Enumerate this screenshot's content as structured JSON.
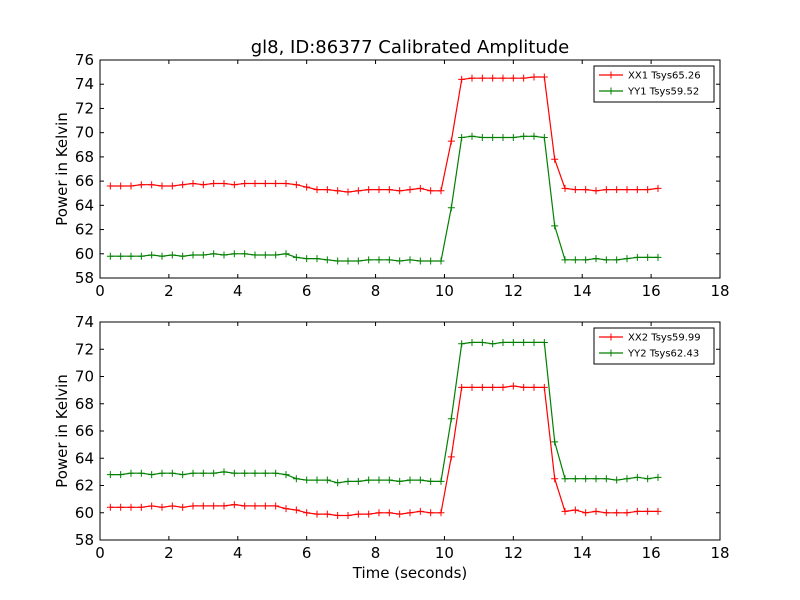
{
  "figure": {
    "title": "gl8, ID:86377 Calibrated Amplitude",
    "xlabel": "Time (seconds)"
  },
  "chart_data": [
    {
      "type": "line",
      "title": "gl8, ID:86377 Calibrated Amplitude",
      "xlabel": "",
      "ylabel": "Power in Kelvin",
      "xlim": [
        0,
        18
      ],
      "ylim": [
        58,
        76
      ],
      "xticks": [
        0,
        2,
        4,
        6,
        8,
        10,
        12,
        14,
        16,
        18
      ],
      "yticks": [
        58,
        60,
        62,
        64,
        66,
        68,
        70,
        72,
        74,
        76
      ],
      "grid": false,
      "legend_position": "top-right",
      "x": [
        0.3,
        0.6,
        0.9,
        1.2,
        1.5,
        1.8,
        2.1,
        2.4,
        2.7,
        3.0,
        3.3,
        3.6,
        3.9,
        4.2,
        4.5,
        4.8,
        5.1,
        5.4,
        5.7,
        6.0,
        6.3,
        6.6,
        6.9,
        7.2,
        7.5,
        7.8,
        8.1,
        8.4,
        8.7,
        9.0,
        9.3,
        9.6,
        9.9,
        10.2,
        10.5,
        10.8,
        11.1,
        11.4,
        11.7,
        12.0,
        12.3,
        12.6,
        12.9,
        13.2,
        13.5,
        13.8,
        14.1,
        14.4,
        14.7,
        15.0,
        15.3,
        15.6,
        15.9,
        16.2
      ],
      "series": [
        {
          "name": "XX1 Tsys65.26",
          "color": "#ff0000",
          "values": [
            65.6,
            65.6,
            65.6,
            65.7,
            65.7,
            65.6,
            65.6,
            65.7,
            65.8,
            65.7,
            65.8,
            65.8,
            65.7,
            65.8,
            65.8,
            65.8,
            65.8,
            65.8,
            65.7,
            65.5,
            65.3,
            65.3,
            65.2,
            65.1,
            65.2,
            65.3,
            65.3,
            65.3,
            65.2,
            65.3,
            65.4,
            65.2,
            65.2,
            69.3,
            74.4,
            74.5,
            74.5,
            74.5,
            74.5,
            74.5,
            74.5,
            74.6,
            74.6,
            67.8,
            65.4,
            65.3,
            65.3,
            65.2,
            65.3,
            65.3,
            65.3,
            65.3,
            65.3,
            65.4
          ]
        },
        {
          "name": "YY1 Tsys59.52",
          "color": "#008000",
          "values": [
            59.8,
            59.8,
            59.8,
            59.8,
            59.9,
            59.8,
            59.9,
            59.8,
            59.9,
            59.9,
            60.0,
            59.9,
            60.0,
            60.0,
            59.9,
            59.9,
            59.9,
            60.0,
            59.7,
            59.6,
            59.6,
            59.5,
            59.4,
            59.4,
            59.4,
            59.5,
            59.5,
            59.5,
            59.4,
            59.5,
            59.4,
            59.4,
            59.4,
            63.8,
            69.6,
            69.7,
            69.6,
            69.6,
            69.6,
            69.6,
            69.7,
            69.7,
            69.6,
            62.3,
            59.5,
            59.5,
            59.5,
            59.6,
            59.5,
            59.5,
            59.6,
            59.7,
            59.7,
            59.7
          ]
        }
      ]
    },
    {
      "type": "line",
      "title": "",
      "xlabel": "Time (seconds)",
      "ylabel": "Power in Kelvin",
      "xlim": [
        0,
        18
      ],
      "ylim": [
        58,
        74
      ],
      "xticks": [
        0,
        2,
        4,
        6,
        8,
        10,
        12,
        14,
        16,
        18
      ],
      "yticks": [
        58,
        60,
        62,
        64,
        66,
        68,
        70,
        72,
        74
      ],
      "grid": false,
      "legend_position": "top-right",
      "x": [
        0.3,
        0.6,
        0.9,
        1.2,
        1.5,
        1.8,
        2.1,
        2.4,
        2.7,
        3.0,
        3.3,
        3.6,
        3.9,
        4.2,
        4.5,
        4.8,
        5.1,
        5.4,
        5.7,
        6.0,
        6.3,
        6.6,
        6.9,
        7.2,
        7.5,
        7.8,
        8.1,
        8.4,
        8.7,
        9.0,
        9.3,
        9.6,
        9.9,
        10.2,
        10.5,
        10.8,
        11.1,
        11.4,
        11.7,
        12.0,
        12.3,
        12.6,
        12.9,
        13.2,
        13.5,
        13.8,
        14.1,
        14.4,
        14.7,
        15.0,
        15.3,
        15.6,
        15.9,
        16.2
      ],
      "series": [
        {
          "name": "XX2 Tsys59.99",
          "color": "#ff0000",
          "values": [
            60.4,
            60.4,
            60.4,
            60.4,
            60.5,
            60.4,
            60.5,
            60.4,
            60.5,
            60.5,
            60.5,
            60.5,
            60.6,
            60.5,
            60.5,
            60.5,
            60.5,
            60.3,
            60.2,
            60.0,
            59.9,
            59.9,
            59.8,
            59.8,
            59.9,
            59.9,
            60.0,
            60.0,
            59.9,
            60.0,
            60.1,
            60.0,
            60.0,
            64.1,
            69.2,
            69.2,
            69.2,
            69.2,
            69.2,
            69.3,
            69.2,
            69.2,
            69.2,
            62.5,
            60.1,
            60.2,
            60.0,
            60.1,
            60.0,
            60.0,
            60.0,
            60.1,
            60.1,
            60.1
          ]
        },
        {
          "name": "YY2 Tsys62.43",
          "color": "#008000",
          "values": [
            62.8,
            62.8,
            62.9,
            62.9,
            62.8,
            62.9,
            62.9,
            62.8,
            62.9,
            62.9,
            62.9,
            63.0,
            62.9,
            62.9,
            62.9,
            62.9,
            62.9,
            62.8,
            62.5,
            62.4,
            62.4,
            62.4,
            62.2,
            62.3,
            62.3,
            62.4,
            62.4,
            62.4,
            62.3,
            62.4,
            62.4,
            62.3,
            62.3,
            66.9,
            72.4,
            72.5,
            72.5,
            72.4,
            72.5,
            72.5,
            72.5,
            72.5,
            72.5,
            65.2,
            62.5,
            62.5,
            62.5,
            62.5,
            62.5,
            62.4,
            62.5,
            62.6,
            62.5,
            62.6
          ]
        }
      ]
    }
  ]
}
